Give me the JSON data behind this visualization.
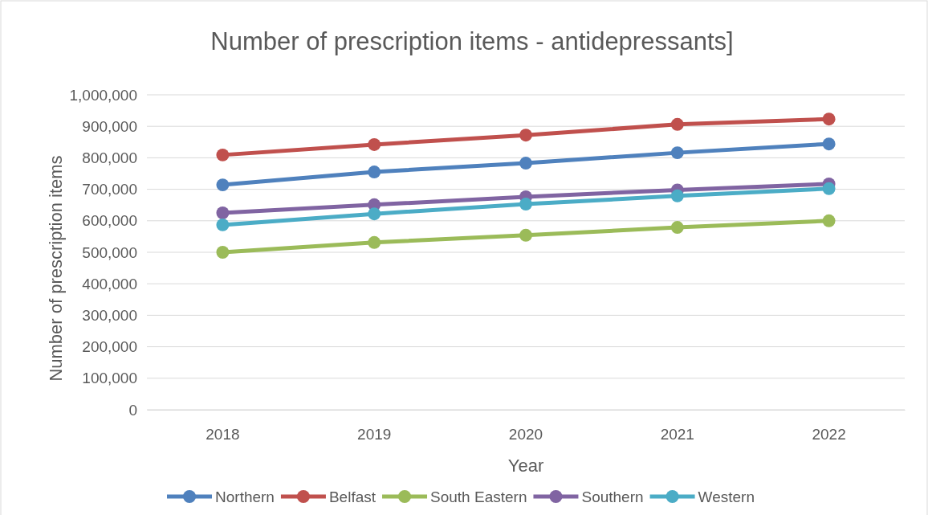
{
  "chart_data": {
    "type": "line",
    "title": "Number of prescription items - antidepressants]",
    "xlabel": "Year",
    "ylabel": "Number of prescription items",
    "categories": [
      "2018",
      "2019",
      "2020",
      "2021",
      "2022"
    ],
    "series": [
      {
        "name": "Northern",
        "color": "#4f81bd",
        "values": [
          714000,
          755000,
          783000,
          816000,
          844000
        ]
      },
      {
        "name": "Belfast",
        "color": "#c0504d",
        "values": [
          809000,
          842000,
          872000,
          906000,
          923000
        ]
      },
      {
        "name": "South Eastern",
        "color": "#9bbb59",
        "values": [
          500000,
          531000,
          554000,
          579000,
          600000
        ]
      },
      {
        "name": "Southern",
        "color": "#8064a2",
        "values": [
          625000,
          651000,
          676000,
          698000,
          717000
        ]
      },
      {
        "name": "Western",
        "color": "#4bacc6",
        "values": [
          587000,
          622000,
          653000,
          679000,
          702000
        ]
      }
    ],
    "ylim": [
      0,
      1000000
    ],
    "yticks": [
      {
        "value": 0,
        "label": "0"
      },
      {
        "value": 100000,
        "label": "100,000"
      },
      {
        "value": 200000,
        "label": "200,000"
      },
      {
        "value": 300000,
        "label": "300,000"
      },
      {
        "value": 400000,
        "label": "400,000"
      },
      {
        "value": 500000,
        "label": "500,000"
      },
      {
        "value": 600000,
        "label": "600,000"
      },
      {
        "value": 700000,
        "label": "700,000"
      },
      {
        "value": 800000,
        "label": "800,000"
      },
      {
        "value": 900000,
        "label": "900,000"
      },
      {
        "value": 1000000,
        "label": "1,000,000"
      }
    ],
    "grid": "y",
    "legend": "bottom",
    "marker": "circle",
    "line_style": "solid"
  }
}
